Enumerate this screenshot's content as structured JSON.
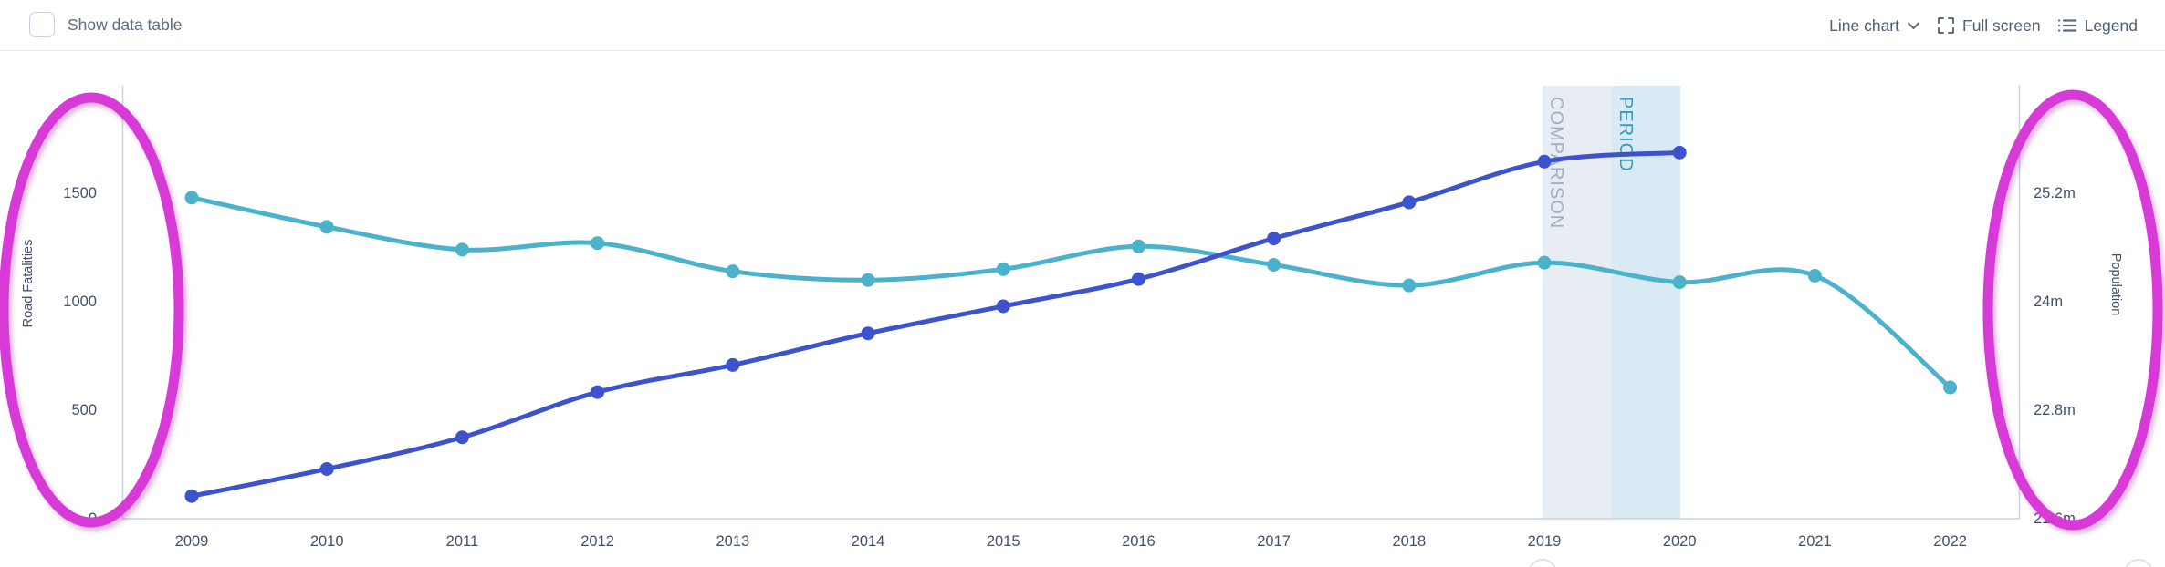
{
  "header": {
    "show_data_table_label": "Show data table",
    "chart_type_label": "Line chart",
    "fullscreen_label": "Full screen",
    "legend_label": "Legend"
  },
  "chart_data": {
    "type": "line",
    "x": [
      2009,
      2010,
      2011,
      2012,
      2013,
      2014,
      2015,
      2016,
      2017,
      2018,
      2019,
      2020,
      2021,
      2022
    ],
    "series": [
      {
        "name": "Road Fatalities",
        "axis": "left",
        "color": "#4bb2cb",
        "values": [
          1480,
          1345,
          1240,
          1270,
          1140,
          1100,
          1150,
          1255,
          1170,
          1075,
          1180,
          1090,
          1120,
          605
        ]
      },
      {
        "name": "Population",
        "axis": "right",
        "color": "#3d53cd",
        "values": [
          21.85,
          22.15,
          22.5,
          23.0,
          23.3,
          23.65,
          23.95,
          24.25,
          24.7,
          25.1,
          25.55,
          25.65
        ]
      }
    ],
    "left_axis": {
      "label": "Road Fatalities",
      "tick_values": [
        0,
        500,
        1000,
        1500
      ],
      "tick_labels": [
        "0",
        "500",
        "1000",
        "1500"
      ]
    },
    "right_axis": {
      "label": "Population",
      "tick_values": [
        21.6,
        22.8,
        24,
        25.2
      ],
      "tick_labels": [
        "21.6m",
        "22.8m",
        "24m",
        "25.2m"
      ]
    },
    "bands": [
      {
        "label": "COMPARISON",
        "year": 2019,
        "half": "left",
        "fill": "#e8edf3",
        "label_color": "#9fb0c2"
      },
      {
        "label": "PERIOD",
        "year": 2020,
        "half": "right",
        "fill": "#daeaf4",
        "label_color": "#3998bc"
      }
    ],
    "axis_line_color": "#c9d3e0",
    "legend_position": "hidden",
    "grid": false
  },
  "annotations": {
    "ellipse_color": "#d83ad8",
    "ellipses": [
      {
        "side": "left",
        "target": "road-fatalities-axis"
      },
      {
        "side": "right",
        "target": "population-axis"
      }
    ],
    "nav_handle_color": "#dde3ea"
  }
}
